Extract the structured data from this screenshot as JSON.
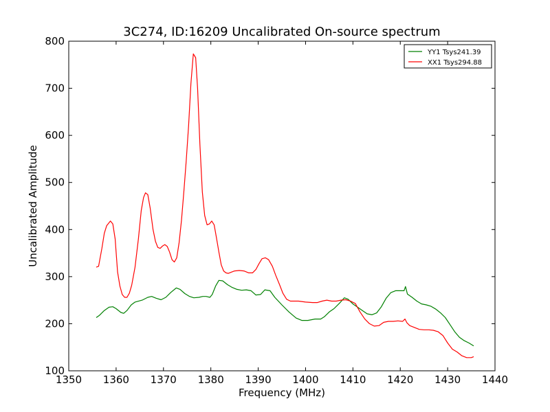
{
  "chart_data": {
    "type": "line",
    "title": "3C274, ID:16209 Uncalibrated On-source spectrum",
    "xlabel": "Frequency (MHz)",
    "ylabel": "Uncalibrated Amplitude",
    "xlim": [
      1350,
      1440
    ],
    "ylim": [
      100,
      800
    ],
    "xticks": [
      "1350",
      "1360",
      "1370",
      "1380",
      "1390",
      "1400",
      "1410",
      "1420",
      "1430",
      "1440"
    ],
    "yticks": [
      "100",
      "200",
      "300",
      "400",
      "500",
      "600",
      "700",
      "800"
    ],
    "grid": false,
    "legend": "top-right",
    "series": [
      {
        "name": "YY1 Tsys241.39",
        "color": "#008000",
        "x": [
          1355.8,
          1356.5,
          1357.5,
          1358.5,
          1359.3,
          1360.0,
          1361.0,
          1361.6,
          1362.3,
          1363.2,
          1364.0,
          1365.5,
          1366.7,
          1367.5,
          1368.5,
          1369.5,
          1370.5,
          1371.5,
          1372.7,
          1373.5,
          1374.5,
          1375.5,
          1376.4,
          1377.5,
          1378.3,
          1379.0,
          1379.8,
          1380.3,
          1381.0,
          1381.7,
          1382.5,
          1383.5,
          1384.5,
          1385.5,
          1386.5,
          1387.5,
          1388.5,
          1389.5,
          1390.5,
          1391.4,
          1392.5,
          1393.5,
          1395.0,
          1396.5,
          1398.0,
          1399.2,
          1400.5,
          1402.0,
          1403.2,
          1404.0,
          1405.0,
          1406.0,
          1407.2,
          1408.2,
          1409.0,
          1410.0,
          1411.0,
          1412.0,
          1413.0,
          1414.0,
          1415.0,
          1416.0,
          1417.0,
          1418.0,
          1419.0,
          1420.0,
          1420.8,
          1421.1,
          1421.5,
          1422.5,
          1423.5,
          1424.5,
          1425.5,
          1426.5,
          1427.5,
          1428.5,
          1429.5,
          1430.5,
          1431.5,
          1432.5,
          1433.5,
          1434.5,
          1435.5
        ],
        "values": [
          213,
          218,
          228,
          235,
          236,
          232,
          224,
          222,
          228,
          240,
          246,
          250,
          256,
          258,
          254,
          251,
          256,
          266,
          276,
          273,
          264,
          258,
          255,
          256,
          258,
          258,
          256,
          262,
          280,
          292,
          291,
          283,
          277,
          273,
          271,
          272,
          270,
          261,
          262,
          272,
          270,
          256,
          240,
          225,
          212,
          207,
          207,
          210,
          210,
          215,
          225,
          232,
          244,
          255,
          252,
          242,
          235,
          228,
          221,
          219,
          223,
          236,
          254,
          266,
          270,
          270,
          270,
          279,
          263,
          256,
          248,
          242,
          240,
          237,
          231,
          223,
          213,
          198,
          183,
          171,
          164,
          159,
          153
        ]
      },
      {
        "name": "XX1 Tsys294.88",
        "color": "#ff0000",
        "x": [
          1355.8,
          1356.3,
          1357.0,
          1357.5,
          1358.0,
          1358.8,
          1359.3,
          1359.8,
          1360.3,
          1360.8,
          1361.3,
          1361.8,
          1362.3,
          1362.8,
          1363.3,
          1364.0,
          1364.7,
          1365.3,
          1365.8,
          1366.2,
          1366.7,
          1367.2,
          1367.8,
          1368.3,
          1368.8,
          1369.3,
          1369.8,
          1370.3,
          1370.8,
          1371.3,
          1371.8,
          1372.3,
          1372.8,
          1373.3,
          1373.8,
          1374.3,
          1374.8,
          1375.3,
          1375.8,
          1376.3,
          1376.8,
          1377.2,
          1377.7,
          1378.2,
          1378.7,
          1379.2,
          1379.7,
          1380.2,
          1380.7,
          1381.2,
          1381.7,
          1382.2,
          1382.7,
          1383.2,
          1383.7,
          1384.2,
          1385.0,
          1386.0,
          1387.0,
          1388.0,
          1388.8,
          1389.5,
          1390.2,
          1390.8,
          1391.5,
          1392.2,
          1393.0,
          1393.7,
          1394.5,
          1395.2,
          1396.0,
          1396.8,
          1397.5,
          1398.5,
          1400.0,
          1401.5,
          1402.5,
          1403.5,
          1404.5,
          1405.5,
          1406.5,
          1407.5,
          1408.5,
          1409.5,
          1410.5,
          1411.5,
          1412.5,
          1413.5,
          1414.5,
          1415.5,
          1416.5,
          1417.5,
          1418.5,
          1419.5,
          1420.5,
          1421.0,
          1421.4,
          1422.0,
          1423.0,
          1424.0,
          1425.0,
          1426.0,
          1427.0,
          1428.0,
          1429.0,
          1430.0,
          1431.0,
          1432.0,
          1433.0,
          1434.0,
          1435.0,
          1435.5
        ],
        "values": [
          320,
          322,
          360,
          392,
          408,
          418,
          412,
          380,
          310,
          280,
          262,
          256,
          256,
          265,
          282,
          320,
          380,
          440,
          468,
          478,
          474,
          445,
          400,
          375,
          362,
          360,
          365,
          368,
          364,
          352,
          336,
          331,
          340,
          372,
          420,
          480,
          545,
          620,
          710,
          773,
          765,
          700,
          580,
          480,
          430,
          410,
          412,
          418,
          410,
          382,
          352,
          325,
          312,
          308,
          307,
          309,
          312,
          313,
          312,
          308,
          308,
          315,
          328,
          338,
          340,
          336,
          322,
          303,
          283,
          265,
          252,
          248,
          248,
          248,
          246,
          245,
          245,
          248,
          250,
          248,
          248,
          250,
          251,
          248,
          243,
          225,
          210,
          200,
          195,
          196,
          203,
          205,
          205,
          206,
          205,
          210,
          202,
          196,
          192,
          188,
          187,
          187,
          186,
          183,
          175,
          159,
          146,
          140,
          132,
          128,
          128,
          130
        ]
      }
    ]
  }
}
